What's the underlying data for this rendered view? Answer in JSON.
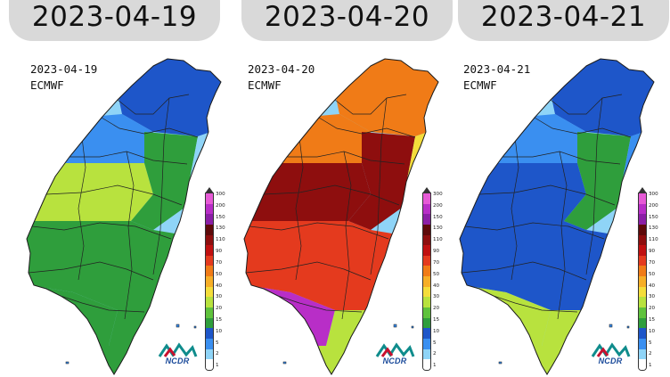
{
  "tabs": [
    {
      "label": "2023-04-19"
    },
    {
      "label": "2023-04-20"
    },
    {
      "label": "2023-04-21"
    }
  ],
  "panels": [
    {
      "date": "2023-04-19",
      "model": "ECMWF",
      "logo": "NCDR",
      "rainfall_levels": {
        "north": "5",
        "northwest": "2",
        "central_west": "20",
        "center": "10",
        "east": "1",
        "south": "10",
        "southwest": "10",
        "southernmost": "10"
      }
    },
    {
      "date": "2023-04-20",
      "model": "ECMWF",
      "logo": "NCDR",
      "rainfall_levels": {
        "north": "50",
        "northwest": "50",
        "central_west": "110",
        "center": "110",
        "east": "30",
        "south": "70",
        "southwest": "200",
        "southernmost": "20"
      }
    },
    {
      "date": "2023-04-21",
      "model": "ECMWF",
      "logo": "NCDR",
      "rainfall_levels": {
        "north": "5",
        "northwest": "2",
        "central_west": "5",
        "center": "10",
        "east": "2",
        "south": "5",
        "southwest": "20",
        "southernmost": "20"
      }
    }
  ],
  "legend": {
    "labels": [
      "300",
      "200",
      "150",
      "130",
      "110",
      "90",
      "70",
      "50",
      "40",
      "30",
      "20",
      "15",
      "10",
      "5",
      "2",
      "1"
    ],
    "colors": [
      "#e65ad6",
      "#b82ec7",
      "#8b1fa6",
      "#5e0a0a",
      "#8e0e0e",
      "#c01010",
      "#e43a1e",
      "#f07b17",
      "#f6ae27",
      "#f4dd3b",
      "#b8e23e",
      "#5fc23c",
      "#2f9e3c",
      "#1e56c9",
      "#3a8ff0",
      "#8fd4f7",
      "#ffffff"
    ]
  },
  "colors": {
    "tab_background": "#d9d9d9",
    "map_outline": "#1a1a1a",
    "logo_red": "#c8102e",
    "logo_teal": "#0f8c8c",
    "logo_blue": "#1a4a9a"
  }
}
